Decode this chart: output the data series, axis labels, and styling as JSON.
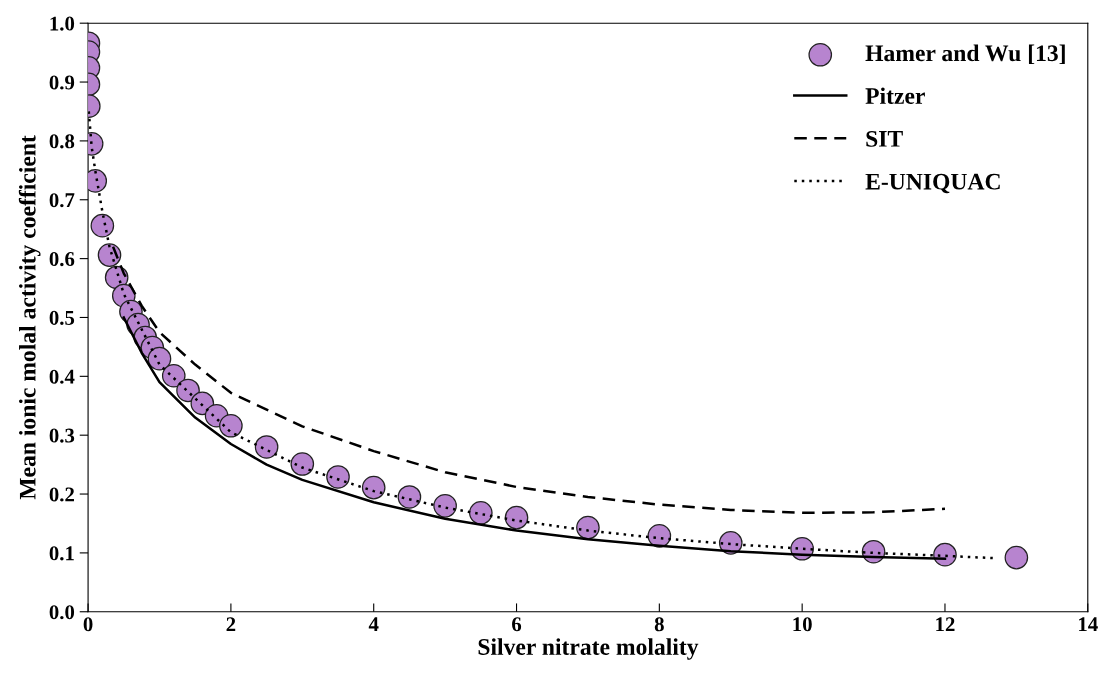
{
  "chart_data": {
    "type": "scatter",
    "xlabel": "Silver nitrate molality",
    "ylabel": "Mean ionic molal activity coefficient",
    "xlim": [
      0,
      14
    ],
    "xticks": [
      0,
      2,
      4,
      6,
      8,
      10,
      12,
      14
    ],
    "ylim": [
      0,
      1.0
    ],
    "yticks": [
      {
        "value": 0,
        "label": "0.0"
      },
      0.1,
      0.2,
      0.3,
      0.4,
      0.5,
      0.6,
      0.7,
      0.8,
      0.9,
      {
        "value": 1.0,
        "label": "1.0"
      }
    ],
    "grid": false,
    "legend": "top right",
    "series": [
      {
        "name": "Hamer and Wu [13]",
        "marker": "circle",
        "color": "#b784cf",
        "x": [
          0.005,
          0.005,
          0.005,
          0.005,
          0.01,
          0.05,
          0.1,
          0.2,
          0.3,
          0.4,
          0.5,
          0.6,
          0.7,
          0.8,
          0.9,
          1.0,
          1.2,
          1.4,
          1.6,
          1.8,
          2.0,
          2.5,
          3.0,
          3.5,
          4.0,
          4.5,
          5.0,
          5.5,
          6.0,
          7.0,
          8.0,
          9.0,
          10.0,
          11.0,
          12.0,
          13.0
        ],
        "values": [
          0.966,
          0.951,
          0.924,
          0.896,
          0.859,
          0.795,
          0.732,
          0.656,
          0.606,
          0.568,
          0.537,
          0.51,
          0.488,
          0.466,
          0.449,
          0.43,
          0.401,
          0.376,
          0.354,
          0.333,
          0.316,
          0.28,
          0.251,
          0.229,
          0.211,
          0.195,
          0.18,
          0.168,
          0.16,
          0.143,
          0.129,
          0.117,
          0.107,
          0.102,
          0.097,
          0.092
        ]
      },
      {
        "name": "Pitzer",
        "type": "line",
        "line_style": "solid",
        "color": "#000000",
        "x": [
          0.5,
          0.75,
          1.0,
          1.5,
          2.0,
          2.5,
          3.0,
          4.0,
          5.0,
          6.0,
          7.0,
          8.0,
          9.0,
          10.0,
          11.0,
          12.0
        ],
        "values": [
          0.5,
          0.44,
          0.39,
          0.33,
          0.285,
          0.25,
          0.224,
          0.186,
          0.158,
          0.138,
          0.123,
          0.112,
          0.103,
          0.097,
          0.093,
          0.09
        ]
      },
      {
        "name": "SIT",
        "type": "line",
        "line_style": "dashed",
        "color": "#000000",
        "x": [
          0.35,
          0.5,
          0.75,
          1.0,
          1.5,
          2.0,
          3.0,
          4.0,
          5.0,
          6.0,
          7.0,
          8.0,
          9.0,
          10.0,
          11.0,
          12.0
        ],
        "values": [
          0.62,
          0.575,
          0.52,
          0.475,
          0.42,
          0.372,
          0.315,
          0.273,
          0.237,
          0.212,
          0.195,
          0.182,
          0.173,
          0.168,
          0.169,
          0.175
        ]
      },
      {
        "name": "E-UNIQUAC",
        "type": "line",
        "line_style": "dotted",
        "color": "#000000",
        "x": [
          0.01,
          0.05,
          0.1,
          0.2,
          0.3,
          0.5,
          1.0,
          2.0,
          3.0,
          4.0,
          5.0,
          6.0,
          7.0,
          8.0,
          9.0,
          10.0,
          11.0,
          12.0,
          12.7
        ],
        "values": [
          0.85,
          0.79,
          0.75,
          0.68,
          0.62,
          0.54,
          0.42,
          0.305,
          0.245,
          0.205,
          0.177,
          0.155,
          0.138,
          0.125,
          0.115,
          0.107,
          0.1,
          0.095,
          0.091
        ]
      }
    ]
  }
}
